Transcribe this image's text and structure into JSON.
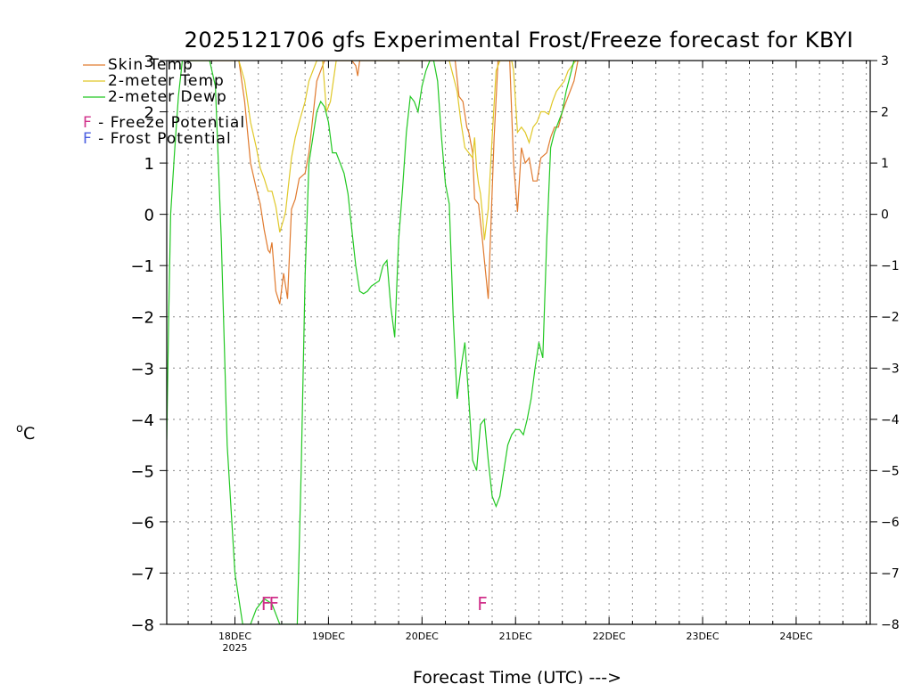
{
  "chart_data": {
    "type": "line",
    "title": "2025121706 gfs Experimental Frost/Freeze forecast for KBYI",
    "xlabel": "Forecast Time (UTC) --->",
    "ylabel_unit": "o",
    "ylabel_text": "C",
    "ylim": [
      -8,
      3
    ],
    "yticks": [
      3,
      2,
      1,
      0,
      -1,
      -2,
      -3,
      -4,
      -5,
      -6,
      -7,
      -8
    ],
    "ytick_labels": [
      "3",
      "2",
      "1",
      "0",
      "−1",
      "−2",
      "−3",
      "−4",
      "−5",
      "−6",
      "−7",
      "−8"
    ],
    "xlim_hours": [
      6.5,
      187
    ],
    "xticks": [
      {
        "hour": 24,
        "label": "18DEC",
        "sublabel": "2025"
      },
      {
        "hour": 48,
        "label": "19DEC",
        "sublabel": ""
      },
      {
        "hour": 72,
        "label": "20DEC",
        "sublabel": ""
      },
      {
        "hour": 96,
        "label": "21DEC",
        "sublabel": ""
      },
      {
        "hour": 120,
        "label": "22DEC",
        "sublabel": ""
      },
      {
        "hour": 144,
        "label": "23DEC",
        "sublabel": ""
      },
      {
        "hour": 168,
        "label": "24DEC",
        "sublabel": ""
      }
    ],
    "grid": true,
    "legend": {
      "placement": "top-left",
      "entries": [
        {
          "label": "Skin Temp",
          "color": "#e07a2e"
        },
        {
          "label": "2-meter Temp",
          "color": "#e0c828"
        },
        {
          "label": "2-meter Dewp",
          "color": "#22c822"
        }
      ],
      "markers": [
        {
          "symbol": "F",
          "text": " - Freeze Potential",
          "color": "#d0308a"
        },
        {
          "symbol": "F",
          "text": " - Frost Potential",
          "color": "#4a5ee0"
        }
      ]
    },
    "series": [
      {
        "name": "Skin Temp",
        "color": "#e07a2e",
        "x": [
          12.5,
          14.5,
          17,
          19,
          21,
          23,
          25,
          26.5,
          28,
          29.5,
          30.5,
          31.5,
          32.5,
          33,
          33.5,
          34.5,
          35.5,
          36.5,
          37.5,
          38.5,
          39.5,
          40.5,
          42,
          43,
          45,
          47,
          49,
          51,
          53,
          54,
          55,
          55.5,
          56,
          57,
          58,
          60,
          62,
          64,
          66,
          68,
          70,
          72,
          73.5,
          75,
          76,
          77,
          78,
          79.5,
          80.5,
          81.5,
          82.5,
          83.5,
          84,
          85,
          85.5,
          86,
          86.5,
          87,
          87.5,
          88,
          89,
          90.5,
          91.5,
          92.5,
          94.5,
          95.5,
          96.5,
          97.5,
          98.5,
          99.5,
          100.5,
          101.5,
          102.5,
          104,
          105,
          106,
          107,
          108,
          109,
          110,
          111,
          111.5,
          112
        ],
        "y": [
          3,
          3,
          3,
          3,
          3,
          3,
          3,
          2.2,
          1.0,
          0.5,
          0.2,
          -0.3,
          -0.7,
          -0.75,
          -0.55,
          -1.5,
          -1.75,
          -1.15,
          -1.65,
          0.1,
          0.3,
          0.7,
          0.8,
          1.2,
          2.6,
          3,
          3,
          3,
          3,
          3,
          2.9,
          2.7,
          3,
          3,
          3,
          3,
          3,
          3,
          3,
          3,
          3,
          3,
          3,
          3,
          3,
          3,
          3,
          3,
          3,
          2.3,
          2.2,
          1.7,
          1.6,
          1.2,
          0.3,
          0.25,
          0.2,
          -0.15,
          -0.5,
          -0.9,
          -1.65,
          1.5,
          3,
          3,
          3,
          1.0,
          0.05,
          1.3,
          1.0,
          1.1,
          0.65,
          0.65,
          1.1,
          1.2,
          1.5,
          1.7,
          1.7,
          2.0,
          2.2,
          2.4,
          2.6,
          2.8,
          3
        ]
      },
      {
        "name": "2-meter Temp",
        "color": "#e0c828",
        "x": [
          12.5,
          14.5,
          17,
          19,
          21,
          23,
          25,
          26.5,
          28,
          29.5,
          30.5,
          31.5,
          32.5,
          33.5,
          34.5,
          35.5,
          36.5,
          37,
          37.5,
          38.5,
          39.5,
          40.5,
          42,
          43,
          45,
          46.5,
          47.5,
          48.5,
          50,
          52,
          54,
          56,
          58,
          60,
          62,
          64,
          66,
          68,
          70,
          72,
          74,
          76,
          77,
          78,
          79,
          80,
          81,
          82,
          83,
          84,
          85,
          85.5,
          86,
          86.5,
          87,
          87.5,
          88,
          89,
          90,
          91,
          92,
          93.5,
          95,
          95.5,
          96.5,
          97.5,
          98.5,
          99.5,
          100.5,
          101.5,
          102.5,
          103.5,
          104.5,
          105.5,
          106.5,
          107.5,
          108.5,
          109.5,
          110.5,
          111.5,
          112
        ],
        "y": [
          3,
          3,
          3,
          3,
          3,
          3,
          3,
          2.6,
          1.8,
          1.3,
          0.9,
          0.7,
          0.45,
          0.45,
          0.15,
          -0.35,
          -0.1,
          0.05,
          0.4,
          1.1,
          1.5,
          1.8,
          2.2,
          2.6,
          3,
          3,
          2.0,
          2.2,
          3,
          3,
          3,
          3,
          3,
          3,
          3,
          3,
          3,
          3,
          3,
          3,
          3,
          3,
          3,
          3,
          3,
          2.7,
          2.4,
          1.8,
          1.3,
          1.2,
          1.1,
          1.5,
          0.9,
          0.6,
          0.4,
          0.0,
          -0.5,
          0.1,
          1.5,
          2.8,
          3,
          3,
          3,
          2.8,
          1.6,
          1.7,
          1.6,
          1.4,
          1.7,
          1.8,
          2.0,
          2.0,
          1.95,
          2.2,
          2.4,
          2.5,
          2.6,
          2.8,
          2.9,
          3,
          3
        ]
      },
      {
        "name": "2-meter Dewp",
        "color": "#22c822",
        "x": [
          6.5,
          7,
          7.5,
          8.5,
          9.5,
          10.5,
          11.5,
          12.5,
          14,
          15.5,
          17.5,
          19,
          20.5,
          22,
          24,
          26,
          28,
          29.5,
          31.5,
          33.5,
          35.5,
          36.5,
          37.5,
          38.5,
          39,
          40,
          41,
          42,
          43,
          44,
          45,
          46,
          47,
          48,
          49,
          50,
          51,
          52,
          53,
          54,
          55,
          56,
          57,
          58,
          59,
          60,
          61,
          62,
          63,
          64,
          65,
          66,
          67,
          68,
          69,
          70,
          71,
          72,
          73,
          74,
          75,
          76,
          77,
          78,
          79,
          80,
          81,
          82,
          83,
          84,
          85,
          86,
          87,
          88,
          89,
          90,
          91,
          92,
          93,
          94,
          95,
          96,
          97,
          98,
          99,
          100,
          101,
          102,
          103,
          104,
          105,
          106,
          107,
          108,
          109,
          110,
          111,
          112
        ],
        "y": [
          -4.4,
          -2.0,
          0.0,
          1.2,
          2.3,
          3,
          3,
          3,
          3,
          3,
          3,
          2.5,
          -0.5,
          -4.5,
          -7.0,
          -8.0,
          -8.0,
          -7.7,
          -7.5,
          -7.6,
          -8.0,
          -8.0,
          -8.0,
          -8.0,
          -8.0,
          -8.0,
          -5.0,
          -1.2,
          1.0,
          1.5,
          2.0,
          2.2,
          2.1,
          1.8,
          1.2,
          1.2,
          1.0,
          0.8,
          0.4,
          -0.3,
          -1.0,
          -1.5,
          -1.55,
          -1.5,
          -1.4,
          -1.35,
          -1.3,
          -1.0,
          -0.9,
          -1.8,
          -2.4,
          -0.5,
          0.5,
          1.6,
          2.3,
          2.2,
          2.0,
          2.5,
          2.8,
          3,
          3,
          2.6,
          1.5,
          0.6,
          0.2,
          -2.0,
          -3.6,
          -3.0,
          -2.5,
          -3.6,
          -4.8,
          -5.0,
          -4.1,
          -4.0,
          -4.8,
          -5.5,
          -5.7,
          -5.5,
          -5.0,
          -4.5,
          -4.3,
          -4.2,
          -4.2,
          -4.3,
          -4.0,
          -3.6,
          -3.0,
          -2.5,
          -2.8,
          -0.5,
          1.3,
          1.6,
          1.8,
          2.0,
          2.4,
          2.7,
          3,
          3
        ]
      }
    ],
    "freeze_markers": [
      {
        "hour": 32,
        "label": "F",
        "y": -7.6
      },
      {
        "hour": 34,
        "label": "F",
        "y": -7.6
      },
      {
        "hour": 87.5,
        "label": "F",
        "y": -7.6
      }
    ]
  }
}
